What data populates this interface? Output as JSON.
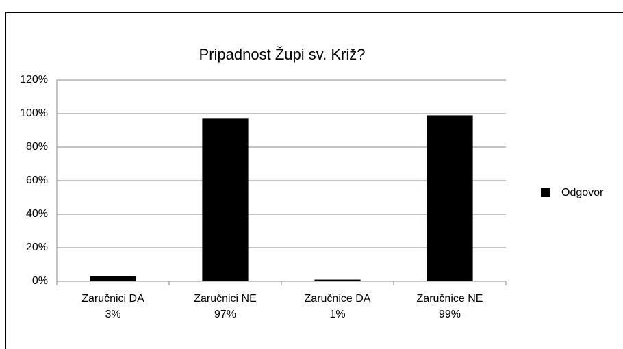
{
  "chart_data": {
    "type": "bar",
    "title": "Pripadnost Župi sv. Križ?",
    "categories": [
      "Zaručnici DA",
      "Zaručnici NE",
      "Zaručnice DA",
      "Zaručnice NE"
    ],
    "series": [
      {
        "name": "Odgovor",
        "color": "#000000",
        "values": [
          3,
          97,
          1,
          99
        ]
      }
    ],
    "value_labels": [
      "3%",
      "97%",
      "1%",
      "99%"
    ],
    "ylim": [
      0,
      120
    ],
    "yticks": [
      {
        "value": 0,
        "label": "0%"
      },
      {
        "value": 20,
        "label": "20%"
      },
      {
        "value": 40,
        "label": "40%"
      },
      {
        "value": 60,
        "label": "60%"
      },
      {
        "value": 80,
        "label": "80%"
      },
      {
        "value": 100,
        "label": "100%"
      },
      {
        "value": 120,
        "label": "120%"
      }
    ],
    "grid": true,
    "legend": "right"
  }
}
